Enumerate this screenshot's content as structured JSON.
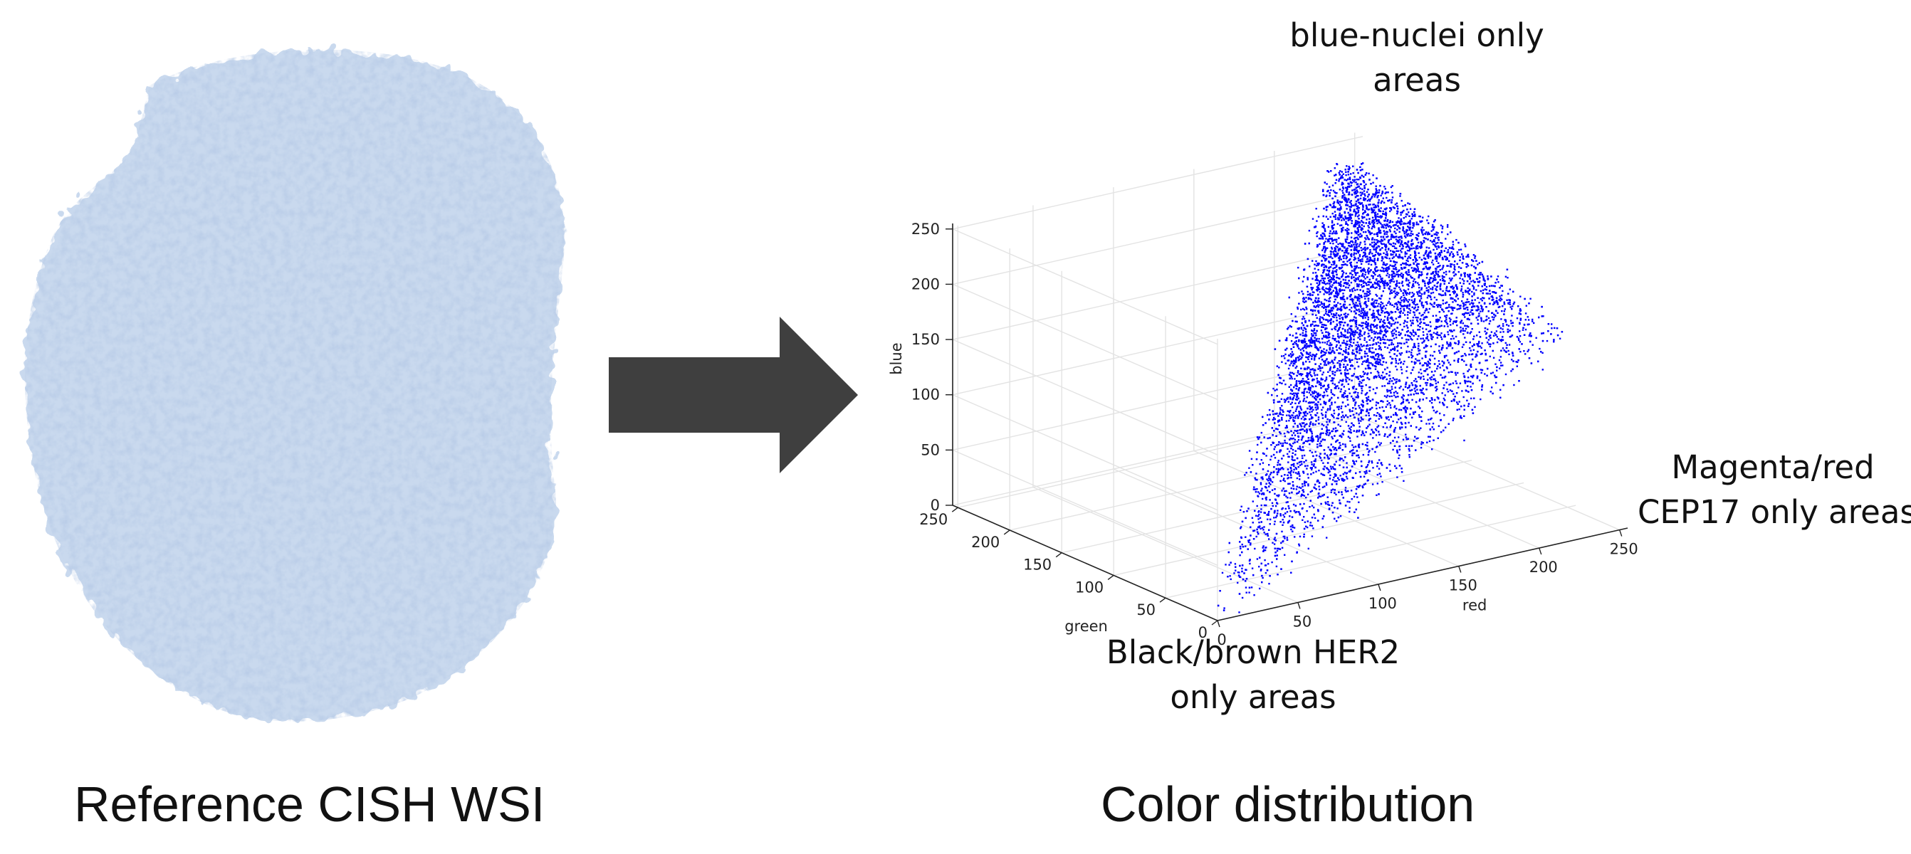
{
  "left_panel": {
    "caption": "Reference CISH WSI",
    "colors": {
      "tissue_light": "#c9d9ee",
      "tissue_mid": "#a8c1e3",
      "tissue_dark": "#7e9fd0"
    }
  },
  "arrow": {
    "color": "#3f3f3f",
    "icon": "right-arrow-icon"
  },
  "right_panel": {
    "caption": "Color distribution",
    "annotations": {
      "top": [
        "blue-nuclei only",
        "areas"
      ],
      "right": [
        "Magenta/red",
        "CEP17 only areas"
      ],
      "bottom": [
        "Black/brown HER2",
        "only areas"
      ]
    }
  },
  "chart_data": {
    "type": "scatter",
    "projection": "3d",
    "xlabel": "red",
    "ylabel": "green",
    "zlabel": "blue",
    "xlim": [
      0,
      255
    ],
    "ylim": [
      0,
      255
    ],
    "zlim": [
      0,
      255
    ],
    "x_ticks": [
      0,
      50,
      100,
      150,
      200,
      250
    ],
    "y_ticks": [
      0,
      50,
      100,
      150,
      200,
      250
    ],
    "z_ticks": [
      0,
      50,
      100,
      150,
      200,
      250
    ],
    "grid": true,
    "point_color": "#0000ff",
    "vertices": {
      "blue_nuclei": [
        220,
        220,
        255
      ],
      "magenta_red": [
        255,
        60,
        150
      ],
      "black_brown": [
        0,
        0,
        0
      ]
    }
  }
}
